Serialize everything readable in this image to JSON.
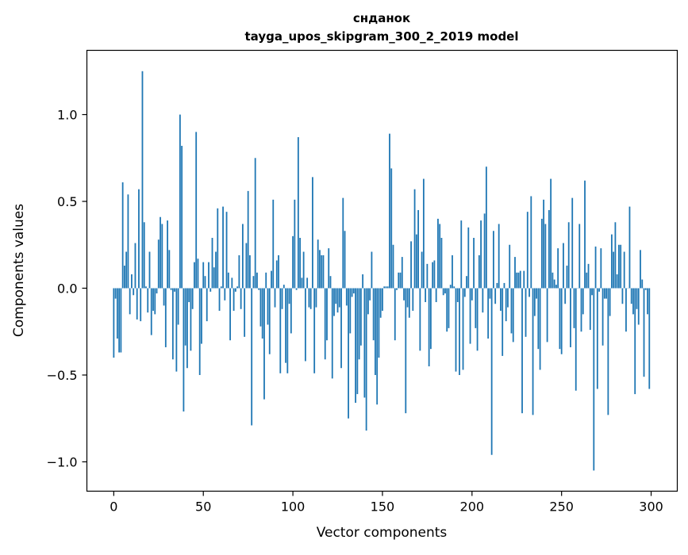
{
  "chart_data": {
    "type": "bar",
    "title": [
      "сндaнок",
      "tayga_upos_skipgram_300_2_2019 model"
    ],
    "xlabel": "Vector components",
    "ylabel": "Components values",
    "xlim": [
      -15,
      314.6
    ],
    "ylim": [
      -1.169,
      1.37
    ],
    "xticks": [
      0,
      50,
      100,
      150,
      200,
      250,
      300
    ],
    "xtick_labels": [
      "0",
      "50",
      "100",
      "150",
      "200",
      "250",
      "300"
    ],
    "yticks": [
      1.0,
      0.5,
      0.0,
      -0.5,
      -1.0
    ],
    "ytick_labels": [
      "1.0",
      "0.5",
      "0.0",
      "−0.5",
      "−1.0"
    ],
    "grid": false,
    "bar_color": "#1f77b4",
    "bar_width": 0.8,
    "values": [
      -0.4,
      -0.06,
      -0.29,
      -0.37,
      -0.37,
      0.61,
      0.13,
      0.21,
      0.54,
      -0.15,
      0.08,
      -0.04,
      0.26,
      -0.18,
      0.57,
      -0.19,
      1.25,
      0.38,
      0.01,
      -0.14,
      0.21,
      -0.27,
      -0.13,
      -0.15,
      -0.03,
      0.28,
      0.41,
      0.37,
      -0.1,
      -0.34,
      0.39,
      0.22,
      -0.01,
      -0.41,
      -0.02,
      -0.48,
      -0.21,
      1.0,
      0.82,
      -0.71,
      -0.33,
      -0.46,
      -0.08,
      -0.36,
      -0.12,
      0.15,
      0.9,
      0.17,
      -0.5,
      -0.32,
      0.15,
      0.07,
      -0.19,
      0.15,
      -0.02,
      0.29,
      0.12,
      0.21,
      0.46,
      -0.13,
      0.01,
      0.47,
      -0.07,
      0.44,
      0.09,
      -0.3,
      0.06,
      -0.13,
      -0.02,
      0.01,
      0.19,
      -0.12,
      0.37,
      -0.28,
      0.26,
      0.56,
      0.19,
      -0.79,
      0.07,
      0.75,
      0.09,
      -0.01,
      -0.22,
      -0.29,
      -0.64,
      0.09,
      -0.21,
      -0.38,
      0.1,
      0.51,
      -0.11,
      0.16,
      0.19,
      -0.49,
      -0.12,
      0.02,
      -0.43,
      -0.49,
      -0.09,
      -0.26,
      0.3,
      0.51,
      -0.01,
      0.87,
      0.29,
      0.06,
      0.21,
      -0.42,
      0.06,
      -0.11,
      -0.12,
      0.64,
      -0.49,
      -0.11,
      0.28,
      0.22,
      0.19,
      0.19,
      -0.41,
      -0.3,
      0.23,
      0.07,
      -0.52,
      -0.16,
      -0.09,
      -0.14,
      -0.11,
      -0.46,
      0.52,
      0.33,
      -0.1,
      -0.75,
      -0.26,
      -0.05,
      -0.03,
      -0.66,
      -0.61,
      -0.41,
      -0.33,
      0.08,
      -0.63,
      -0.82,
      -0.15,
      -0.07,
      0.21,
      -0.3,
      -0.5,
      -0.67,
      -0.4,
      -0.17,
      -0.13,
      0.01,
      0.01,
      0.01,
      0.89,
      0.69,
      0.25,
      -0.3,
      -0.01,
      0.09,
      0.09,
      0.18,
      -0.07,
      -0.72,
      -0.11,
      -0.17,
      0.27,
      -0.13,
      0.57,
      0.31,
      0.45,
      -0.36,
      0.21,
      0.63,
      -0.08,
      0.14,
      -0.45,
      -0.35,
      0.15,
      0.16,
      -0.08,
      0.4,
      0.37,
      0.29,
      -0.04,
      -0.03,
      -0.25,
      -0.23,
      0.02,
      0.19,
      0.01,
      -0.48,
      -0.08,
      -0.5,
      0.39,
      -0.47,
      -0.05,
      0.07,
      0.35,
      -0.32,
      -0.07,
      0.29,
      -0.23,
      -0.36,
      0.19,
      0.39,
      -0.14,
      0.43,
      0.7,
      -0.29,
      -0.06,
      -0.96,
      0.33,
      -0.09,
      0.03,
      0.37,
      -0.13,
      -0.39,
      0.03,
      -0.19,
      -0.11,
      0.25,
      -0.26,
      -0.31,
      0.18,
      0.09,
      0.09,
      0.1,
      -0.72,
      0.1,
      -0.28,
      0.44,
      -0.05,
      0.53,
      -0.73,
      -0.16,
      -0.06,
      -0.35,
      -0.47,
      0.4,
      0.51,
      0.37,
      -0.31,
      0.45,
      0.63,
      0.09,
      0.05,
      0.02,
      0.23,
      -0.35,
      -0.38,
      0.26,
      -0.09,
      0.13,
      0.38,
      -0.34,
      0.52,
      -0.23,
      -0.59,
      0.0,
      0.37,
      -0.25,
      -0.15,
      0.62,
      0.09,
      0.14,
      -0.24,
      -0.04,
      -1.05,
      0.24,
      -0.58,
      -0.02,
      0.23,
      -0.33,
      -0.06,
      -0.06,
      -0.73,
      -0.16,
      0.31,
      0.21,
      0.38,
      0.08,
      0.25,
      0.25,
      -0.09,
      0.21,
      -0.25,
      0.0,
      0.47,
      -0.09,
      -0.15,
      -0.61,
      -0.12,
      -0.21,
      0.22,
      0.05,
      -0.51,
      -0.01,
      -0.15,
      -0.58
    ]
  }
}
